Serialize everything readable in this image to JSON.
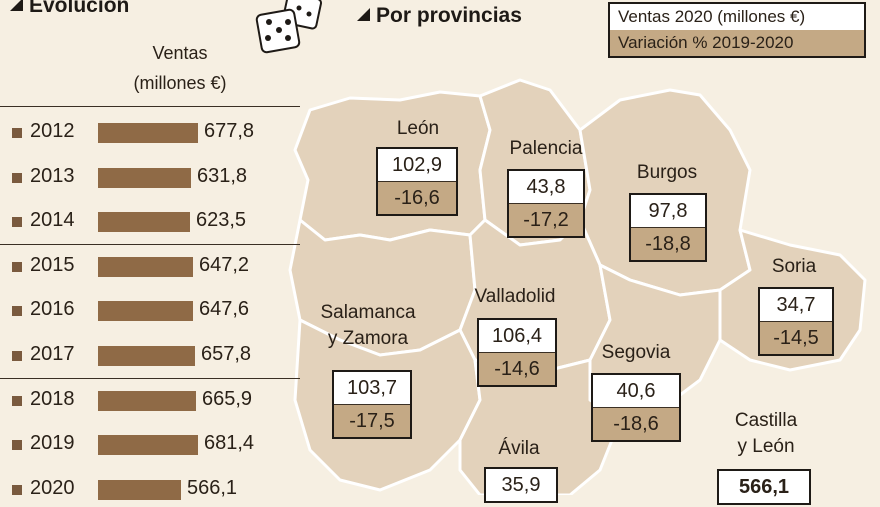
{
  "header": {
    "evolucion_title": "Evolución",
    "provincias_title": "Por provincias"
  },
  "legend": {
    "ventas_label": "Ventas 2020 (millones €)",
    "variacion_label": "Variación % 2019-2020",
    "ventas_color": "#ffffff",
    "variacion_color": "#c4a985"
  },
  "evolution": {
    "heading_line1": "Ventas",
    "heading_line2": "(millones €)",
    "bar_color": "#8f6a46",
    "years": [
      {
        "year": "2012",
        "label": "677,8",
        "value": 677.8
      },
      {
        "year": "2013",
        "label": "631,8",
        "value": 631.8
      },
      {
        "year": "2014",
        "label": "623,5",
        "value": 623.5
      },
      {
        "year": "2015",
        "label": "647,2",
        "value": 647.2
      },
      {
        "year": "2016",
        "label": "647,6",
        "value": 647.6
      },
      {
        "year": "2017",
        "label": "657,8",
        "value": 657.8
      },
      {
        "year": "2018",
        "label": "665,9",
        "value": 665.9
      },
      {
        "year": "2019",
        "label": "681,4",
        "value": 681.4
      },
      {
        "year": "2020",
        "label": "566,1",
        "value": 566.1
      }
    ]
  },
  "provinces": {
    "leon": {
      "name": "León",
      "ventas": "102,9",
      "variacion": "-16,6"
    },
    "palencia": {
      "name": "Palencia",
      "ventas": "43,8",
      "variacion": "-17,2"
    },
    "burgos": {
      "name": "Burgos",
      "ventas": "97,8",
      "variacion": "-18,8"
    },
    "soria": {
      "name": "Soria",
      "ventas": "34,7",
      "variacion": "-14,5"
    },
    "valladolid": {
      "name": "Valladolid",
      "ventas": "106,4",
      "variacion": "-14,6"
    },
    "salamanca": {
      "name_line1": "Salamanca",
      "name_line2": "y Zamora",
      "ventas": "103,7",
      "variacion": "-17,5"
    },
    "segovia": {
      "name": "Segovia",
      "ventas": "40,6",
      "variacion": "-18,6"
    },
    "avila": {
      "name": "Ávila",
      "ventas": "35,9"
    },
    "cyl": {
      "name_line1": "Castilla",
      "name_line2": "y León",
      "ventas": "566,1"
    }
  },
  "map_colors": {
    "region_fill": "#e3d2bb",
    "region_stroke": "#ffffff"
  }
}
